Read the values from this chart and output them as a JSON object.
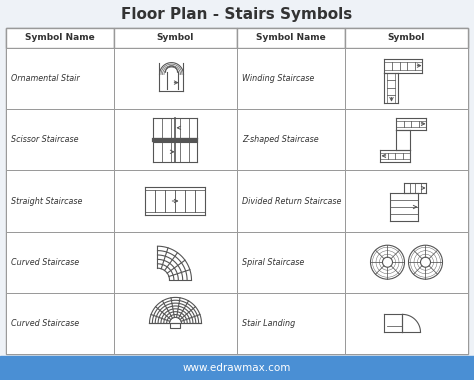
{
  "title": "Floor Plan - Stairs Symbols",
  "title_fontsize": 11,
  "title_fontweight": "bold",
  "bg_color": "#eef2f7",
  "border_color": "#999999",
  "text_color": "#333333",
  "footer_bg": "#4a8fd4",
  "footer_text": "www.edrawmax.com",
  "footer_text_color": "#ffffff",
  "left_rows": [
    "Ornamental Stair",
    "Scissor Staircase",
    "Straight Staircase",
    "Curved Staircase",
    "Curved Staircase"
  ],
  "right_rows": [
    "Winding Staircase",
    "Z-shaped Staircase",
    "Divided Return Staircase",
    "Spiral Staircase",
    "Stair Landing"
  ],
  "col_header_name": "Symbol Name",
  "col_header_symbol": "Symbol",
  "draw_color": "#555555",
  "table_fill": "#ffffff"
}
